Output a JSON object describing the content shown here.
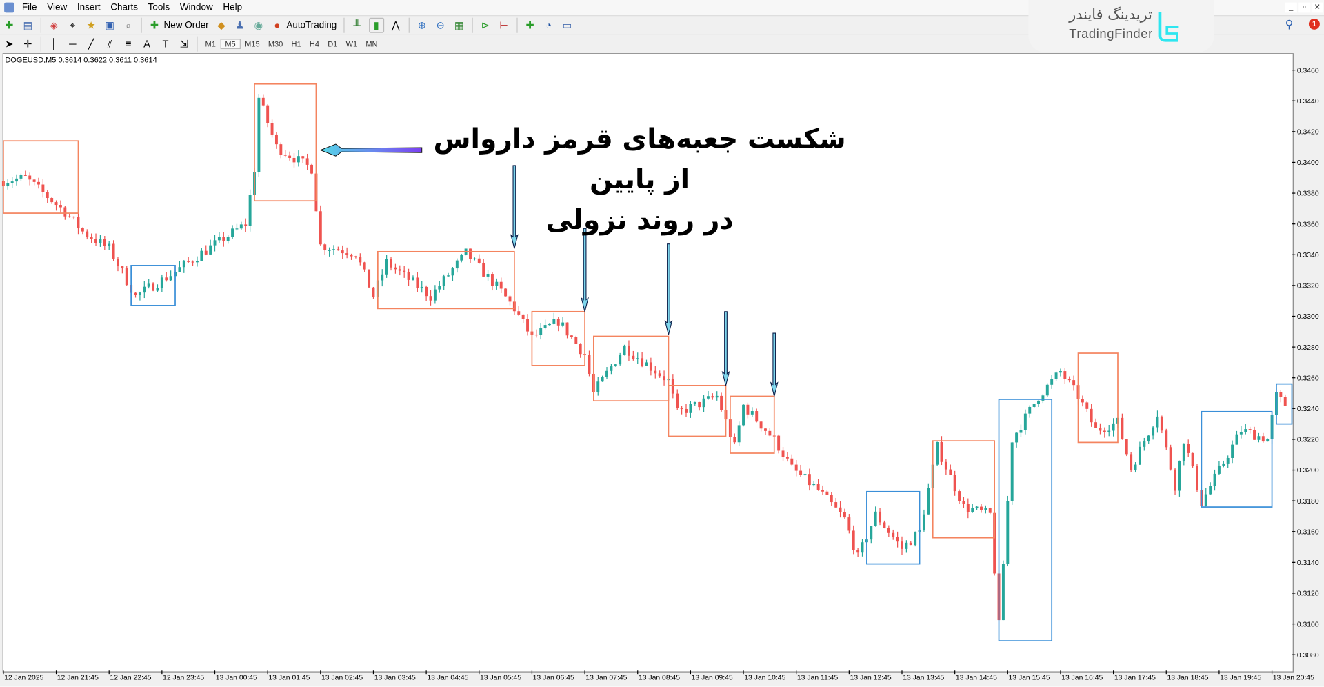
{
  "menu": [
    "File",
    "View",
    "Insert",
    "Charts",
    "Tools",
    "Window",
    "Help"
  ],
  "toolbar": {
    "new_order": "New Order",
    "autotrading": "AutoTrading"
  },
  "timeframes": [
    "M1",
    "M5",
    "M15",
    "M30",
    "H1",
    "H4",
    "D1",
    "W1",
    "MN"
  ],
  "active_timeframe": "M5",
  "chart_header": "DOGEUSD,M5  0.3614 0.3622 0.3611 0.3614",
  "logo": {
    "fa": "تریدینگ فایندر",
    "en": "TradingFinder"
  },
  "notification_count": "1",
  "annotation": {
    "line1": "شکست جعبه‌های قرمز دارواس از پایین",
    "line2": "در روند نزولی"
  },
  "colors": {
    "bull": "#26a69a",
    "bear": "#ef5350",
    "red_box": "#f4845f",
    "blue_box": "#3a8fd8",
    "arrow_start": "#7b3ff2",
    "arrow_end": "#55d8e8"
  },
  "chart_data": {
    "type": "candlestick",
    "symbol": "DOGEUSD",
    "timeframe": "M5",
    "ylim": [
      0.307,
      0.347
    ],
    "y_ticks": [
      "0.3460",
      "0.3440",
      "0.3420",
      "0.3400",
      "0.3380",
      "0.3360",
      "0.3340",
      "0.3320",
      "0.3300",
      "0.3280",
      "0.3260",
      "0.3240",
      "0.3220",
      "0.3200",
      "0.3180",
      "0.3160",
      "0.3140",
      "0.3120",
      "0.3100",
      "0.3080"
    ],
    "x_ticks": [
      "12 Jan 2025",
      "12 Jan 21:45",
      "12 Jan 22:45",
      "12 Jan 23:45",
      "13 Jan 00:45",
      "13 Jan 01:45",
      "13 Jan 02:45",
      "13 Jan 03:45",
      "13 Jan 04:45",
      "13 Jan 05:45",
      "13 Jan 06:45",
      "13 Jan 07:45",
      "13 Jan 08:45",
      "13 Jan 09:45",
      "13 Jan 10:45",
      "13 Jan 11:45",
      "13 Jan 12:45",
      "13 Jan 13:45",
      "13 Jan 14:45",
      "13 Jan 15:45",
      "13 Jan 16:45",
      "13 Jan 17:45",
      "13 Jan 18:45",
      "13 Jan 19:45",
      "13 Jan 20:45"
    ],
    "price_path": [
      [
        "12 Jan 20:45",
        0.3388
      ],
      [
        "12 Jan 21:10",
        0.339
      ],
      [
        "12 Jan 21:55",
        0.3368
      ],
      [
        "12 Jan 22:15",
        0.3355
      ],
      [
        "12 Jan 22:45",
        0.3344
      ],
      [
        "12 Jan 23:15",
        0.3313
      ],
      [
        "12 Jan 23:55",
        0.3327
      ],
      [
        "13 Jan 00:30",
        0.3341
      ],
      [
        "13 Jan 01:20",
        0.336
      ],
      [
        "13 Jan 01:30",
        0.3396
      ],
      [
        "13 Jan 01:35",
        0.3442
      ],
      [
        "13 Jan 01:55",
        0.341
      ],
      [
        "13 Jan 02:35",
        0.3396
      ],
      [
        "13 Jan 02:45",
        0.3346
      ],
      [
        "13 Jan 03:25",
        0.3341
      ],
      [
        "13 Jan 03:45",
        0.3313
      ],
      [
        "13 Jan 04:00",
        0.3335
      ],
      [
        "13 Jan 04:50",
        0.3313
      ],
      [
        "13 Jan 05:30",
        0.3341
      ],
      [
        "13 Jan 06:10",
        0.3316
      ],
      [
        "13 Jan 06:25",
        0.3305
      ],
      [
        "13 Jan 06:45",
        0.3286
      ],
      [
        "13 Jan 07:15",
        0.3297
      ],
      [
        "13 Jan 07:45",
        0.3275
      ],
      [
        "13 Jan 07:55",
        0.325
      ],
      [
        "13 Jan 08:30",
        0.328
      ],
      [
        "13 Jan 09:20",
        0.3258
      ],
      [
        "13 Jan 09:30",
        0.3237
      ],
      [
        "13 Jan 10:15",
        0.3248
      ],
      [
        "13 Jan 10:35",
        0.3215
      ],
      [
        "13 Jan 10:45",
        0.3242
      ],
      [
        "13 Jan 11:20",
        0.322
      ],
      [
        "13 Jan 11:40",
        0.3201
      ],
      [
        "13 Jan 12:10",
        0.3187
      ],
      [
        "13 Jan 12:40",
        0.3168
      ],
      [
        "13 Jan 12:55",
        0.3143
      ],
      [
        "13 Jan 13:15",
        0.3171
      ],
      [
        "13 Jan 13:45",
        0.3149
      ],
      [
        "13 Jan 14:05",
        0.316
      ],
      [
        "13 Jan 14:25",
        0.3215
      ],
      [
        "13 Jan 14:55",
        0.3176
      ],
      [
        "13 Jan 15:25",
        0.3171
      ],
      [
        "13 Jan 15:35",
        0.3099
      ],
      [
        "13 Jan 15:50",
        0.322
      ],
      [
        "13 Jan 16:20",
        0.3248
      ],
      [
        "13 Jan 16:45",
        0.3264
      ],
      [
        "13 Jan 17:05",
        0.3248
      ],
      [
        "13 Jan 17:25",
        0.3226
      ],
      [
        "13 Jan 17:50",
        0.3231
      ],
      [
        "13 Jan 18:05",
        0.3201
      ],
      [
        "13 Jan 18:35",
        0.3237
      ],
      [
        "13 Jan 18:55",
        0.319
      ],
      [
        "13 Jan 19:05",
        0.322
      ],
      [
        "13 Jan 19:25",
        0.3179
      ],
      [
        "13 Jan 20:10",
        0.3226
      ],
      [
        "13 Jan 20:40",
        0.322
      ],
      [
        "13 Jan 20:50",
        0.3248
      ],
      [
        "13 Jan 21:05",
        0.324
      ]
    ],
    "boxes": [
      {
        "kind": "red",
        "from": "12 Jan 20:45",
        "to": "12 Jan 22:10",
        "top": 0.3414,
        "bottom": 0.3367
      },
      {
        "kind": "blue",
        "from": "12 Jan 23:10",
        "to": "13 Jan 00:00",
        "top": 0.3333,
        "bottom": 0.3307
      },
      {
        "kind": "red",
        "from": "13 Jan 01:30",
        "to": "13 Jan 02:40",
        "top": 0.3451,
        "bottom": 0.3375
      },
      {
        "kind": "red",
        "from": "13 Jan 03:50",
        "to": "13 Jan 06:25",
        "top": 0.3342,
        "bottom": 0.3305
      },
      {
        "kind": "red",
        "from": "13 Jan 06:45",
        "to": "13 Jan 07:45",
        "top": 0.3303,
        "bottom": 0.3268
      },
      {
        "kind": "red",
        "from": "13 Jan 07:55",
        "to": "13 Jan 09:20",
        "top": 0.3287,
        "bottom": 0.3245
      },
      {
        "kind": "red",
        "from": "13 Jan 09:20",
        "to": "13 Jan 10:25",
        "top": 0.3255,
        "bottom": 0.3222
      },
      {
        "kind": "red",
        "from": "13 Jan 10:30",
        "to": "13 Jan 11:20",
        "top": 0.3248,
        "bottom": 0.3211
      },
      {
        "kind": "blue",
        "from": "13 Jan 13:05",
        "to": "13 Jan 14:05",
        "top": 0.3186,
        "bottom": 0.3139
      },
      {
        "kind": "red",
        "from": "13 Jan 14:20",
        "to": "13 Jan 15:30",
        "top": 0.3219,
        "bottom": 0.3156
      },
      {
        "kind": "blue",
        "from": "13 Jan 15:35",
        "to": "13 Jan 16:35",
        "top": 0.3246,
        "bottom": 0.3089
      },
      {
        "kind": "red",
        "from": "13 Jan 17:05",
        "to": "13 Jan 17:50",
        "top": 0.3276,
        "bottom": 0.3218
      },
      {
        "kind": "blue",
        "from": "13 Jan 19:25",
        "to": "13 Jan 20:45",
        "top": 0.3238,
        "bottom": 0.3176
      },
      {
        "kind": "blue",
        "from": "13 Jan 20:50",
        "to": "13 Jan 21:15",
        "top": 0.3256,
        "bottom": 0.323
      }
    ],
    "arrows": [
      {
        "style": "horizontal",
        "from": [
          "13 Jan 04:40",
          0.3408
        ],
        "to": [
          "13 Jan 02:45",
          0.3408
        ]
      },
      {
        "style": "vertical",
        "from": [
          "13 Jan 06:25",
          0.3398
        ],
        "to": [
          "13 Jan 06:25",
          0.3344
        ]
      },
      {
        "style": "vertical",
        "from": [
          "13 Jan 07:45",
          0.3357
        ],
        "to": [
          "13 Jan 07:45",
          0.3303
        ]
      },
      {
        "style": "vertical",
        "from": [
          "13 Jan 09:20",
          0.3347
        ],
        "to": [
          "13 Jan 09:20",
          0.3288
        ]
      },
      {
        "style": "vertical",
        "from": [
          "13 Jan 10:25",
          0.3303
        ],
        "to": [
          "13 Jan 10:25",
          0.3255
        ]
      },
      {
        "style": "vertical",
        "from": [
          "13 Jan 11:20",
          0.3289
        ],
        "to": [
          "13 Jan 11:20",
          0.3248
        ]
      }
    ]
  }
}
